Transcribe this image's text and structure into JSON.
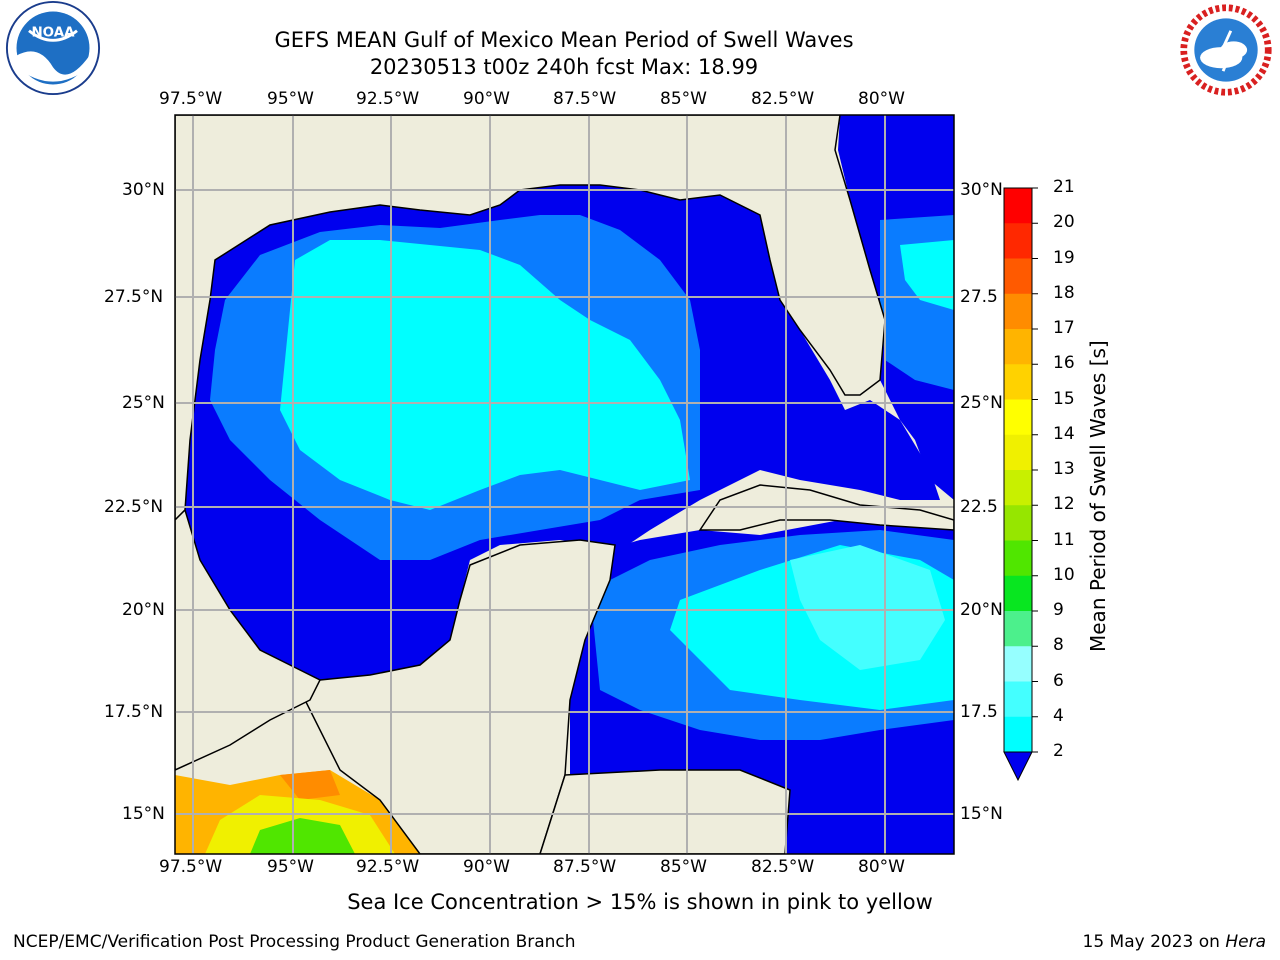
{
  "header": {
    "title_line1": "GEFS MEAN Gulf of Mexico Mean Period of Swell Waves",
    "title_line2": "20230513 t00z 240h fcst   Max: 18.99"
  },
  "logos": {
    "left": "noa-logo-icon",
    "right": "nws-logo-icon"
  },
  "map": {
    "lon_ticks": [
      "97.5°W",
      "95°W",
      "92.5°W",
      "90°W",
      "87.5°W",
      "85°W",
      "82.5°W",
      "80°W"
    ],
    "lat_ticks_left": [
      "30°N",
      "27.5°N",
      "25°N",
      "22.5°N",
      "20°N",
      "17.5°N",
      "15°N"
    ],
    "lat_ticks_right": [
      "30°N",
      "27.5",
      "25°N",
      "22.5",
      "20°N",
      "17.5",
      "15°N"
    ],
    "colors": {
      "land": "#eeeddc",
      "ocean_low": "#0000ee",
      "ocean_mid": "#0a7cff",
      "ocean_high": "#00ffff",
      "grid": "#b0b0b0"
    }
  },
  "colorbar": {
    "title": "Mean Period of Swell Waves [s]",
    "labels": [
      "2",
      "4",
      "6",
      "8",
      "9",
      "10",
      "11",
      "12",
      "13",
      "14",
      "15",
      "16",
      "17",
      "18",
      "19",
      "20",
      "21"
    ],
    "colors": [
      "#0a7cff",
      "#00ffff",
      "#44ffff",
      "#96ffff",
      "#4cf08c",
      "#08e620",
      "#50e600",
      "#96e600",
      "#c8f000",
      "#f0f000",
      "#ffff00",
      "#ffd200",
      "#ffb400",
      "#ff8c00",
      "#ff5a00",
      "#ff2800",
      "#ff0000"
    ]
  },
  "note": "Sea Ice Concentration > 15% is shown in pink to yellow",
  "footer": {
    "left": "NCEP/EMC/Verification Post Processing Product Generation Branch",
    "right_prefix": "15 May 2023 on ",
    "right_host": "Hera"
  }
}
